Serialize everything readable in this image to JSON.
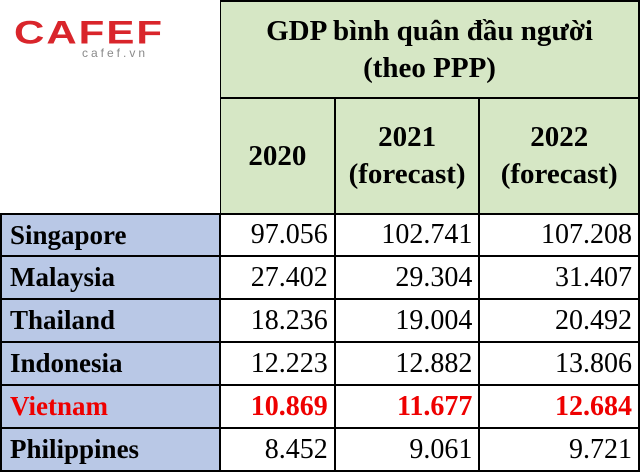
{
  "brand": {
    "logo": "CAFEF",
    "site": "cafef.vn"
  },
  "table": {
    "title_line1": "GDP bình quân đầu người",
    "title_line2": "(theo PPP)",
    "columns": [
      {
        "year": "2020",
        "note": ""
      },
      {
        "year": "2021",
        "note": "(forecast)"
      },
      {
        "year": "2022",
        "note": "(forecast)"
      }
    ],
    "rows": [
      {
        "country": "Singapore",
        "values": [
          "97.056",
          "102.741",
          "107.208"
        ]
      },
      {
        "country": "Malaysia",
        "values": [
          "27.402",
          "29.304",
          "31.407"
        ]
      },
      {
        "country": "Thailand",
        "values": [
          "18.236",
          "19.004",
          "20.492"
        ]
      },
      {
        "country": "Indonesia",
        "values": [
          "12.223",
          "12.882",
          "13.806"
        ]
      },
      {
        "country": "Vietnam",
        "values": [
          "10.869",
          "11.677",
          "12.684"
        ]
      },
      {
        "country": "Philippines",
        "values": [
          "8.452",
          "9.061",
          "9.721"
        ]
      }
    ],
    "highlight_color": "#ee0000",
    "header_bg": "#d6e7c5",
    "country_bg": "#b9c8e6"
  }
}
